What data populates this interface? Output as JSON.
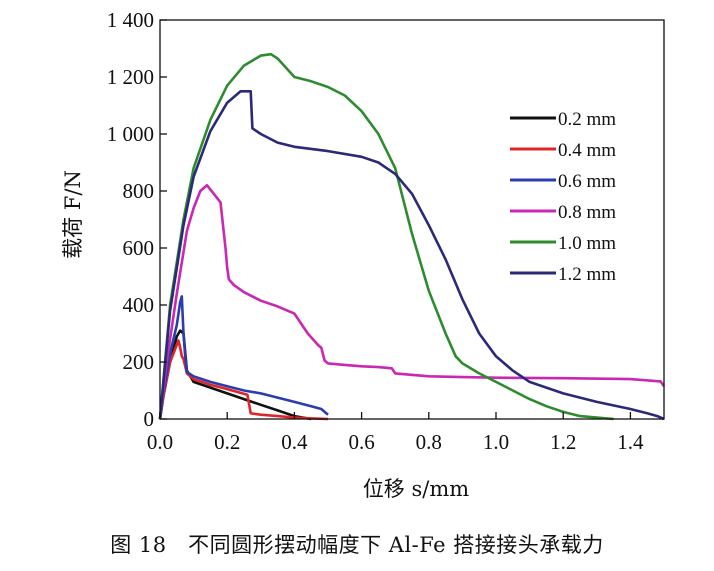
{
  "caption": "图 18　不同圆形摆动幅度下 Al-Fe 搭接接头承载力",
  "chart_data": {
    "type": "line",
    "title": "",
    "xlabel": "位移 s/mm",
    "ylabel": "载荷 F/N",
    "xlim": [
      0,
      1.5
    ],
    "ylim": [
      0,
      1400
    ],
    "x_ticks": [
      0.0,
      0.2,
      0.4,
      0.6,
      0.8,
      1.0,
      1.2,
      1.4
    ],
    "x_tick_labels": [
      "0.0",
      "0.2",
      "0.4",
      "0.6",
      "0.8",
      "1.0",
      "1.2",
      "1.4"
    ],
    "y_ticks": [
      0,
      200,
      400,
      600,
      800,
      1000,
      1200,
      1400
    ],
    "y_tick_labels": [
      "0",
      "200",
      "400",
      "600",
      "800",
      "1 000",
      "1 200",
      "1 400"
    ],
    "grid": false,
    "legend_position": "right",
    "series": [
      {
        "name": "0.2 mm",
        "color": "#111111",
        "x": [
          0,
          0.01,
          0.03,
          0.05,
          0.06,
          0.07,
          0.08,
          0.1,
          0.15,
          0.2,
          0.25,
          0.3,
          0.35,
          0.4,
          0.45
        ],
        "y": [
          0,
          80,
          200,
          290,
          310,
          300,
          170,
          130,
          110,
          90,
          70,
          50,
          30,
          10,
          0
        ]
      },
      {
        "name": "0.4 mm",
        "color": "#e0252a",
        "x": [
          0,
          0.01,
          0.03,
          0.05,
          0.055,
          0.06,
          0.065,
          0.07,
          0.08,
          0.1,
          0.15,
          0.2,
          0.26,
          0.27,
          0.3,
          0.35,
          0.4,
          0.45,
          0.5
        ],
        "y": [
          0,
          80,
          200,
          260,
          275,
          250,
          220,
          210,
          160,
          140,
          120,
          105,
          85,
          20,
          15,
          10,
          5,
          2,
          0
        ]
      },
      {
        "name": "0.6 mm",
        "color": "#2b3cb0",
        "x": [
          0,
          0.01,
          0.03,
          0.05,
          0.06,
          0.065,
          0.07,
          0.075,
          0.08,
          0.1,
          0.15,
          0.2,
          0.25,
          0.3,
          0.35,
          0.4,
          0.45,
          0.48,
          0.5
        ],
        "y": [
          0,
          90,
          230,
          330,
          410,
          430,
          300,
          220,
          165,
          150,
          130,
          115,
          100,
          90,
          75,
          60,
          45,
          35,
          15
        ]
      },
      {
        "name": "0.8 mm",
        "color": "#c828b4",
        "x": [
          0,
          0.02,
          0.05,
          0.08,
          0.1,
          0.12,
          0.14,
          0.16,
          0.18,
          0.195,
          0.2,
          0.205,
          0.22,
          0.25,
          0.3,
          0.35,
          0.4,
          0.44,
          0.47,
          0.48,
          0.49,
          0.5,
          0.55,
          0.6,
          0.65,
          0.69,
          0.7,
          0.8,
          0.9,
          1.0,
          1.2,
          1.4,
          1.49,
          1.5
        ],
        "y": [
          0,
          200,
          440,
          660,
          740,
          800,
          820,
          790,
          760,
          600,
          530,
          490,
          470,
          445,
          415,
          395,
          370,
          300,
          260,
          250,
          205,
          195,
          190,
          185,
          182,
          178,
          160,
          150,
          147,
          145,
          143,
          140,
          132,
          115
        ]
      },
      {
        "name": "1.0 mm",
        "color": "#2e8b2e",
        "x": [
          0,
          0.03,
          0.07,
          0.1,
          0.15,
          0.2,
          0.25,
          0.3,
          0.33,
          0.35,
          0.4,
          0.45,
          0.5,
          0.55,
          0.6,
          0.65,
          0.7,
          0.75,
          0.8,
          0.85,
          0.88,
          0.9,
          0.95,
          1.0,
          1.05,
          1.1,
          1.15,
          1.2,
          1.25,
          1.3,
          1.35
        ],
        "y": [
          0,
          400,
          700,
          880,
          1050,
          1170,
          1240,
          1275,
          1280,
          1265,
          1200,
          1185,
          1165,
          1135,
          1080,
          1000,
          880,
          650,
          450,
          300,
          220,
          195,
          160,
          130,
          100,
          70,
          45,
          25,
          10,
          5,
          0
        ]
      },
      {
        "name": "1.2 mm",
        "color": "#2a2a78",
        "x": [
          0,
          0.03,
          0.07,
          0.1,
          0.15,
          0.2,
          0.24,
          0.27,
          0.275,
          0.3,
          0.35,
          0.4,
          0.5,
          0.6,
          0.65,
          0.7,
          0.75,
          0.8,
          0.85,
          0.9,
          0.95,
          1.0,
          1.05,
          1.1,
          1.2,
          1.3,
          1.4,
          1.45,
          1.48,
          1.5
        ],
        "y": [
          0,
          380,
          680,
          850,
          1010,
          1110,
          1150,
          1150,
          1020,
          1000,
          970,
          955,
          940,
          920,
          900,
          860,
          790,
          680,
          560,
          420,
          300,
          220,
          170,
          130,
          90,
          60,
          35,
          20,
          10,
          0
        ]
      }
    ]
  }
}
